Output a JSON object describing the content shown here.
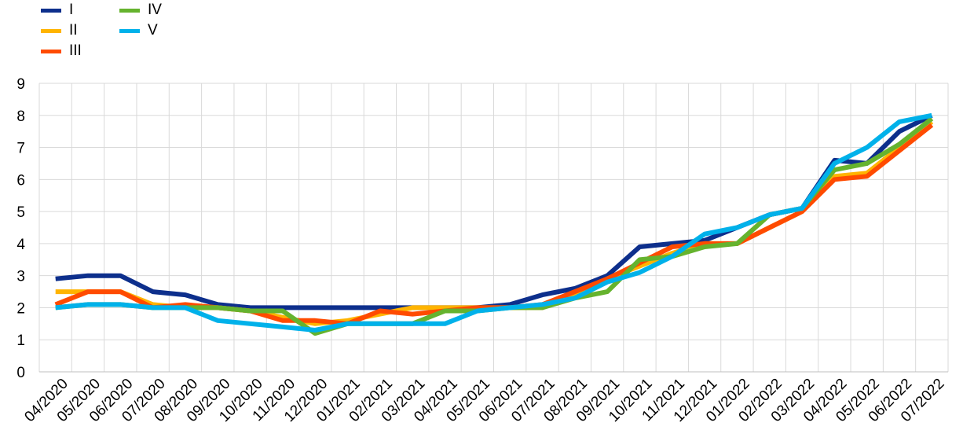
{
  "chart_data": {
    "type": "line",
    "title": "",
    "xlabel": "",
    "ylabel": "",
    "ylim": [
      0,
      9
    ],
    "yticks": [
      0,
      1,
      2,
      3,
      4,
      5,
      6,
      7,
      8,
      9
    ],
    "grid": true,
    "legend_position": "top-left",
    "x_tick_labels": [
      "04/2020",
      "05/2020",
      "06/2020",
      "07/2020",
      "08/2020",
      "09/2020",
      "10/2020",
      "11/2020",
      "12/2020",
      "01/2021",
      "02/2021",
      "03/2021",
      "04/2021",
      "05/2021",
      "06/2021",
      "07/2021",
      "08/2021",
      "09/2021",
      "10/2021",
      "11/2021",
      "12/2021",
      "01/2022",
      "02/2022",
      "03/2022",
      "04/2022",
      "05/2022",
      "06/2022",
      "07/2022"
    ],
    "series": [
      {
        "name": "I",
        "color": "#0D2F8C",
        "values": [
          2.9,
          3.0,
          3.0,
          2.5,
          2.4,
          2.1,
          2.0,
          2.0,
          2.0,
          2.0,
          2.0,
          2.0,
          2.0,
          2.0,
          2.1,
          2.4,
          2.6,
          3.0,
          3.9,
          4.0,
          4.1,
          4.5,
          4.9,
          5.1,
          6.6,
          6.5,
          7.5,
          8.0
        ]
      },
      {
        "name": "II",
        "color": "#FFB400",
        "values": [
          2.5,
          2.5,
          2.5,
          2.1,
          2.0,
          2.0,
          1.9,
          1.7,
          1.5,
          1.6,
          1.8,
          2.0,
          2.0,
          2.0,
          2.0,
          2.0,
          2.4,
          2.9,
          3.3,
          3.7,
          4.0,
          4.0,
          4.5,
          5.0,
          6.1,
          6.2,
          7.0,
          7.8
        ]
      },
      {
        "name": "III",
        "color": "#FF4B00",
        "values": [
          2.1,
          2.5,
          2.5,
          2.0,
          2.1,
          2.0,
          1.9,
          1.6,
          1.6,
          1.5,
          1.9,
          1.8,
          1.9,
          2.0,
          2.0,
          2.1,
          2.5,
          2.9,
          3.4,
          3.9,
          4.0,
          4.0,
          4.5,
          5.0,
          6.0,
          6.1,
          6.9,
          7.7
        ]
      },
      {
        "name": "IV",
        "color": "#65B32E",
        "values": [
          2.0,
          2.1,
          2.1,
          2.0,
          2.0,
          2.0,
          1.9,
          1.9,
          1.2,
          1.5,
          1.5,
          1.5,
          1.9,
          1.9,
          2.0,
          2.0,
          2.3,
          2.5,
          3.5,
          3.6,
          3.9,
          4.0,
          4.9,
          5.1,
          6.3,
          6.5,
          7.1,
          7.9
        ]
      },
      {
        "name": "V",
        "color": "#00B1EA",
        "values": [
          2.0,
          2.1,
          2.1,
          2.0,
          2.0,
          1.6,
          1.5,
          1.4,
          1.3,
          1.5,
          1.5,
          1.5,
          1.5,
          1.9,
          2.0,
          2.1,
          2.3,
          2.8,
          3.1,
          3.6,
          4.3,
          4.5,
          4.9,
          5.1,
          6.5,
          7.0,
          7.8,
          8.0
        ]
      }
    ]
  }
}
